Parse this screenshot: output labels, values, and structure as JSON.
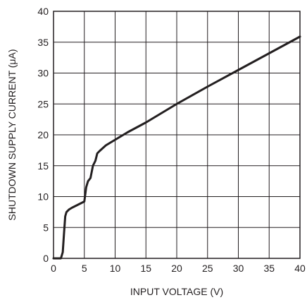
{
  "chart_data": {
    "type": "line",
    "xlabel": "INPUT VOLTAGE (V)",
    "ylabel": "SHUTDOWN SUPPLY CURRENT (μA)",
    "xlim": [
      0,
      40
    ],
    "ylim": [
      0,
      40
    ],
    "xticks": [
      0,
      5,
      10,
      15,
      20,
      25,
      30,
      35,
      40
    ],
    "yticks": [
      0,
      5,
      10,
      15,
      20,
      25,
      30,
      35,
      40
    ],
    "grid": true,
    "colors": {
      "line": "#231f20",
      "grid": "#231f20",
      "text": "#231f20"
    },
    "series": [
      {
        "x": [
          0,
          1.2,
          1.5,
          1.7,
          1.9,
          2.1,
          2.5,
          3.0,
          4.0,
          5.0,
          5.3,
          5.6,
          6.0,
          6.4,
          6.8,
          7.1,
          7.5,
          8.5,
          10.0,
          12.0,
          15.0,
          20.0,
          25.0,
          30.0,
          35.0,
          40.0
        ],
        "y": [
          0,
          0,
          1.0,
          4.0,
          6.8,
          7.5,
          7.9,
          8.2,
          8.7,
          9.2,
          11.5,
          12.5,
          13.0,
          15.0,
          15.8,
          17.0,
          17.4,
          18.3,
          19.2,
          20.4,
          22.0,
          25.0,
          27.8,
          30.5,
          33.2,
          35.9
        ]
      }
    ]
  }
}
